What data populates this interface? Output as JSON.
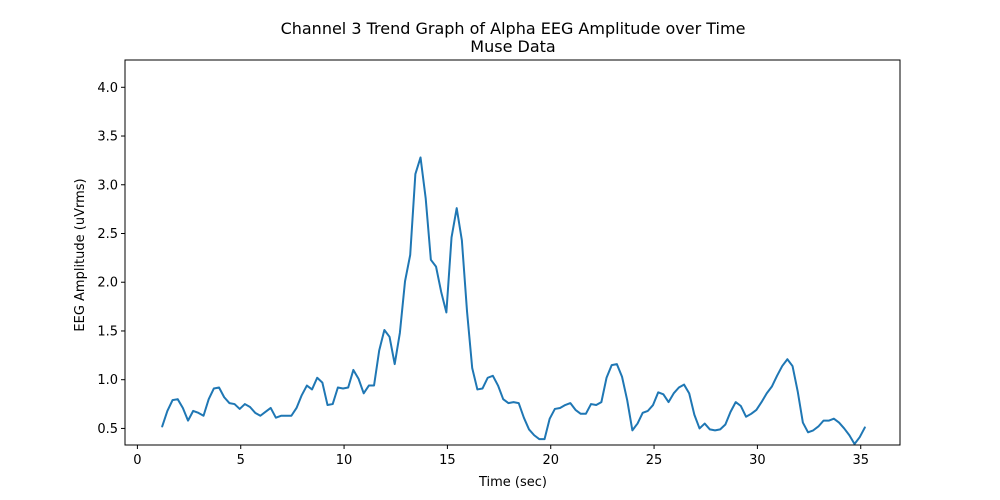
{
  "chart_data": {
    "type": "line",
    "title": "Channel 3 Trend Graph of Alpha EEG Amplitude over Time",
    "subtitle": "Muse Data",
    "xlabel": "Time (sec)",
    "ylabel": "EEG Amplitude (uVrms)",
    "xlim": [
      -0.6,
      36.9
    ],
    "ylim": [
      0.33,
      4.28
    ],
    "xticks": [
      0,
      5,
      10,
      15,
      20,
      25,
      30,
      35
    ],
    "yticks": [
      0.5,
      1.0,
      1.5,
      2.0,
      2.5,
      3.0,
      3.5,
      4.0
    ],
    "ytick_labels": [
      "0.5",
      "1.0",
      "1.5",
      "2.0",
      "2.5",
      "3.0",
      "3.5",
      "4.0"
    ],
    "grid": false,
    "series": [
      {
        "color": "#1f77b4",
        "x": [
          1.2,
          1.45,
          1.7,
          1.95,
          2.2,
          2.45,
          2.7,
          2.95,
          3.2,
          3.45,
          3.7,
          3.95,
          4.2,
          4.45,
          4.7,
          4.95,
          5.2,
          5.45,
          5.7,
          5.95,
          6.2,
          6.45,
          6.7,
          6.95,
          7.2,
          7.45,
          7.7,
          7.95,
          8.2,
          8.45,
          8.7,
          8.95,
          9.2,
          9.45,
          9.7,
          9.95,
          10.2,
          10.45,
          10.7,
          10.95,
          11.2,
          11.45,
          11.7,
          11.95,
          12.2,
          12.45,
          12.7,
          12.95,
          13.2,
          13.45,
          13.7,
          13.95,
          14.2,
          14.45,
          14.7,
          14.95,
          15.2,
          15.45,
          15.7,
          15.95,
          16.2,
          16.45,
          16.7,
          16.95,
          17.2,
          17.45,
          17.7,
          17.95,
          18.2,
          18.45,
          18.7,
          18.95,
          19.2,
          19.45,
          19.7,
          19.95,
          20.2,
          20.45,
          20.7,
          20.95,
          21.2,
          21.45,
          21.7,
          21.95,
          22.2,
          22.45,
          22.7,
          22.95,
          23.2,
          23.45,
          23.7,
          23.95,
          24.2,
          24.45,
          24.7,
          24.95,
          25.2,
          25.45,
          25.7,
          25.95,
          26.2,
          26.45,
          26.7,
          26.95,
          27.2,
          27.45,
          27.7,
          27.95,
          28.2,
          28.45,
          28.7,
          28.95,
          29.2,
          29.45,
          29.7,
          29.95,
          30.2,
          30.45,
          30.7,
          30.95,
          31.2,
          31.45,
          31.7,
          31.95,
          32.2,
          32.45,
          32.7,
          32.95,
          33.2,
          33.45,
          33.7,
          33.95,
          34.2,
          34.45,
          34.7,
          34.95,
          35.2
        ],
        "y": [
          0.52,
          0.68,
          0.79,
          0.8,
          0.71,
          0.58,
          0.68,
          0.66,
          0.63,
          0.8,
          0.91,
          0.92,
          0.82,
          0.76,
          0.75,
          0.7,
          0.75,
          0.72,
          0.66,
          0.63,
          0.67,
          0.71,
          0.61,
          0.63,
          0.63,
          0.63,
          0.71,
          0.84,
          0.94,
          0.9,
          1.02,
          0.97,
          0.74,
          0.75,
          0.92,
          0.91,
          0.92,
          1.1,
          1.01,
          0.86,
          0.94,
          0.94,
          1.3,
          1.51,
          1.44,
          1.16,
          1.48,
          2.01,
          2.28,
          3.11,
          3.28,
          2.86,
          2.23,
          2.16,
          1.9,
          1.69,
          2.46,
          2.76,
          2.43,
          1.7,
          1.12,
          0.9,
          0.91,
          1.02,
          1.04,
          0.94,
          0.8,
          0.76,
          0.77,
          0.76,
          0.61,
          0.49,
          0.43,
          0.39,
          0.39,
          0.6,
          0.7,
          0.71,
          0.74,
          0.76,
          0.69,
          0.65,
          0.65,
          0.75,
          0.74,
          0.77,
          1.02,
          1.15,
          1.16,
          1.03,
          0.79,
          0.48,
          0.55,
          0.66,
          0.68,
          0.74,
          0.87,
          0.85,
          0.77,
          0.86,
          0.92,
          0.95,
          0.86,
          0.64,
          0.5,
          0.55,
          0.49,
          0.48,
          0.49,
          0.54,
          0.67,
          0.77,
          0.73,
          0.62,
          0.65,
          0.69,
          0.77,
          0.86,
          0.93,
          1.04,
          1.14,
          1.21,
          1.14,
          0.88,
          0.56,
          0.46,
          0.48,
          0.52,
          0.58,
          0.58,
          0.6,
          0.56,
          0.5,
          0.43,
          0.34,
          0.41,
          0.51
        ]
      }
    ]
  }
}
